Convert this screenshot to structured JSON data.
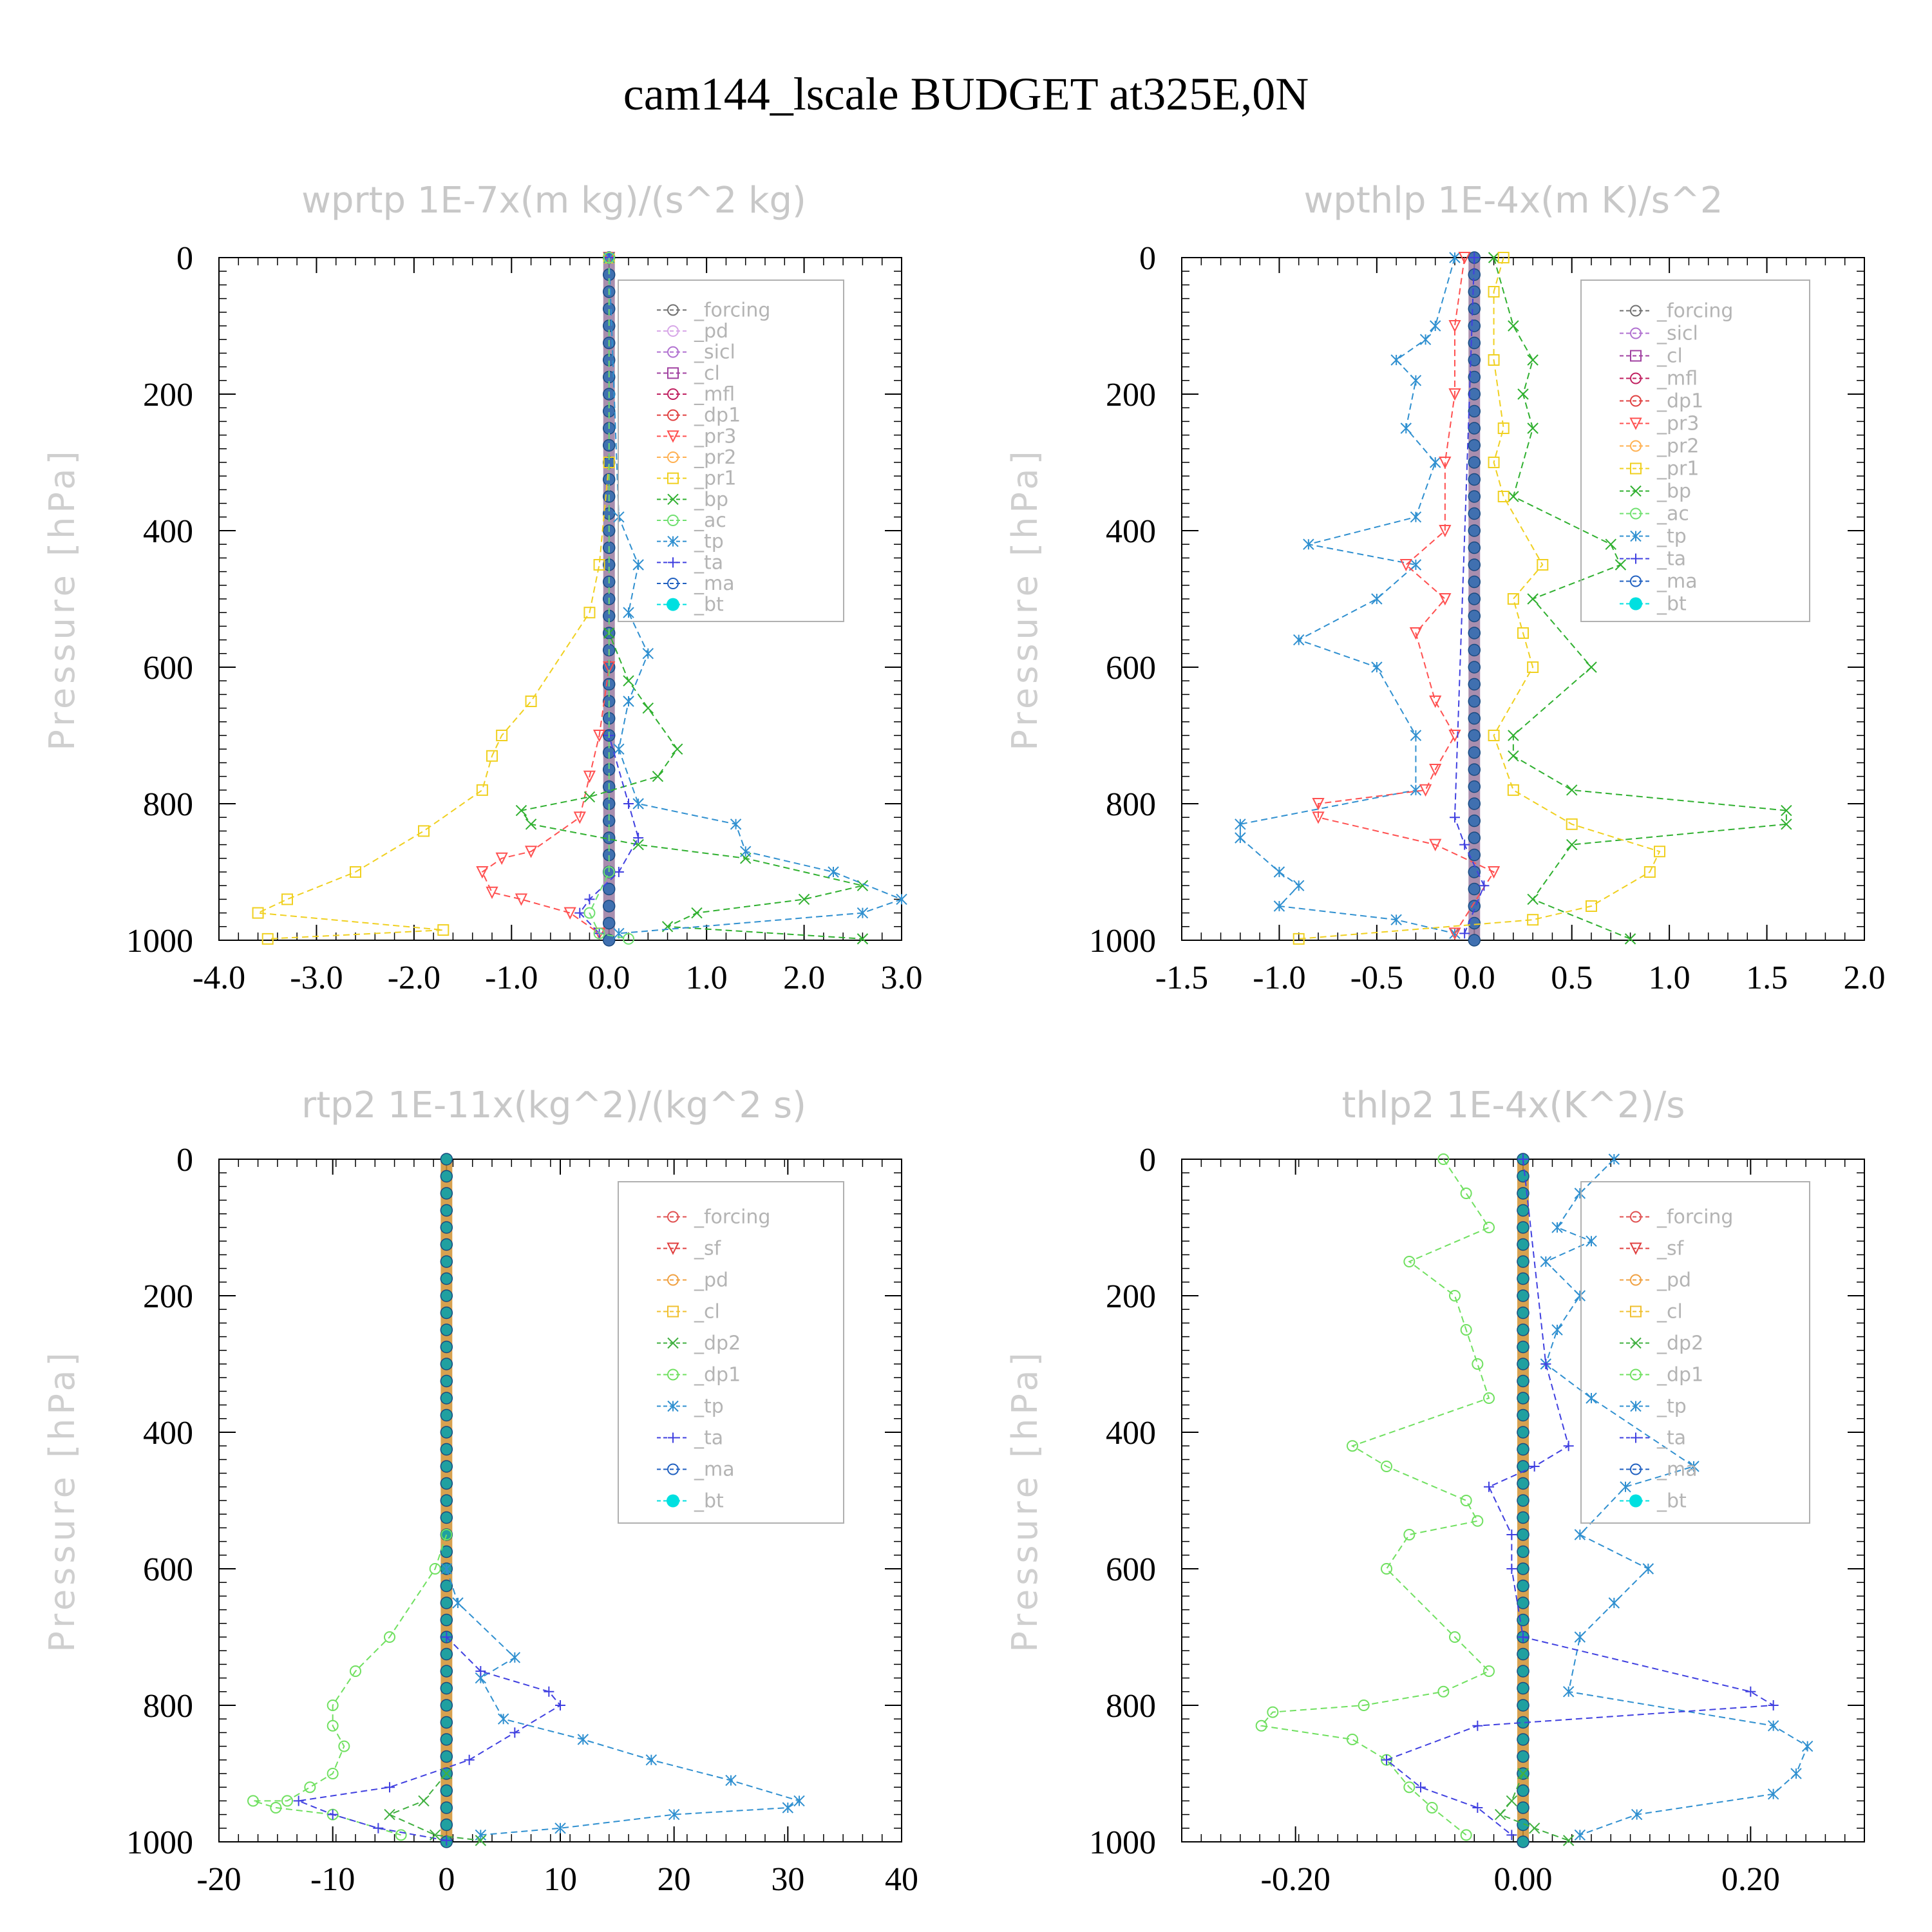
{
  "title": "cam144_lscale  BUDGET at325E,0N",
  "ylabel": "Pressure [hPa]",
  "colors": {
    "_forcing": "#707070",
    "_forcing_red": "#e05050",
    "_pd": "#d8a8e8",
    "_sicl": "#b070d0",
    "_cl": "#a040a0",
    "_cl_yellow": "#f0c030",
    "_mfl": "#c02060",
    "_dp1": "#e04040",
    "_dp1_green": "#70e060",
    "_pr3": "#ff5050",
    "_pr2": "#ffb050",
    "_pr1": "#f0d020",
    "_bp": "#30b030",
    "_ac": "#70e070",
    "_tp": "#3090d0",
    "_ta": "#4040e0",
    "_ma": "#2060c0",
    "_bt": "#00e0e0",
    "_sf": "#e04040",
    "_pd_orange": "#f0a040",
    "_dp2": "#40b040"
  },
  "chart_data": [
    {
      "type": "line",
      "title": "wprtp  1E-7x(m kg)/(s^2 kg)",
      "ylabel": "Pressure [hPa]",
      "xlim": [
        -4.0,
        3.0
      ],
      "ylim": [
        0,
        1000
      ],
      "xticks": [
        "-4.0",
        "-3.0",
        "-2.0",
        "-1.0",
        "0.0",
        "1.0",
        "2.0",
        "3.0"
      ],
      "yticks": [
        "0",
        "200",
        "400",
        "600",
        "800",
        "1000"
      ],
      "legend": [
        "_forcing",
        "_pd",
        "_sicl",
        "_cl",
        "_mfl",
        "_dp1",
        "_pr3",
        "_pr2",
        "_pr1",
        "_bp",
        "_ac",
        "_tp",
        "_ta",
        "_ma",
        "_bt"
      ],
      "legend_position": "upper-right",
      "series": [
        {
          "name": "_pr1",
          "x": [
            0,
            0,
            -0.1,
            -0.2,
            -0.8,
            -1.1,
            -1.2,
            -1.3,
            -1.9,
            -2.6,
            -3.3,
            -3.6,
            -1.7,
            -3.5
          ],
          "y": [
            0,
            300,
            450,
            520,
            650,
            700,
            730,
            780,
            840,
            900,
            940,
            960,
            985,
            998
          ]
        },
        {
          "name": "_pr3",
          "x": [
            0,
            0,
            -0.1,
            -0.2,
            -0.3,
            -0.8,
            -1.1,
            -1.3,
            -1.2,
            -0.9,
            -0.4,
            -0.1
          ],
          "y": [
            0,
            600,
            700,
            760,
            820,
            870,
            880,
            900,
            930,
            940,
            960,
            990
          ]
        },
        {
          "name": "_bp",
          "x": [
            0,
            0,
            0.2,
            0.4,
            0.7,
            0.5,
            -0.2,
            -0.9,
            -0.8,
            0.3,
            1.4,
            2.6,
            2.0,
            0.9,
            0.6,
            2.6
          ],
          "y": [
            0,
            550,
            620,
            660,
            720,
            760,
            790,
            810,
            830,
            860,
            880,
            920,
            940,
            960,
            980,
            998
          ]
        },
        {
          "name": "_tp",
          "x": [
            0,
            0.1,
            0.3,
            0.2,
            0.4,
            0.2,
            0.1,
            0.3,
            1.3,
            1.4,
            2.3,
            3.0,
            2.6,
            0.1
          ],
          "y": [
            0,
            380,
            450,
            520,
            580,
            650,
            720,
            800,
            830,
            870,
            900,
            940,
            960,
            990
          ]
        },
        {
          "name": "_ta",
          "x": [
            0,
            0,
            0.2,
            0.3,
            0.1,
            -0.2,
            -0.3,
            -0.1
          ],
          "y": [
            0,
            700,
            800,
            850,
            900,
            940,
            960,
            990
          ]
        },
        {
          "name": "_ac",
          "x": [
            0,
            0,
            -0.2,
            -0.1,
            0.2
          ],
          "y": [
            0,
            900,
            960,
            990,
            998
          ]
        }
      ]
    },
    {
      "type": "line",
      "title": "wpthlp  1E-4x(m K)/s^2",
      "ylabel": "Pressure [hPa]",
      "xlim": [
        -1.5,
        2.0
      ],
      "ylim": [
        0,
        1000
      ],
      "xticks": [
        "-1.5",
        "-1.0",
        "-0.5",
        "0.0",
        "0.5",
        "1.0",
        "1.5",
        "2.0"
      ],
      "yticks": [
        "0",
        "200",
        "400",
        "600",
        "800",
        "1000"
      ],
      "legend": [
        "_forcing",
        "_sicl",
        "_cl",
        "_mfl",
        "_dp1",
        "_pr3",
        "_pr2",
        "_pr1",
        "_bp",
        "_ac",
        "_tp",
        "_ta",
        "_ma",
        "_bt"
      ],
      "legend_position": "upper-right",
      "series": [
        {
          "name": "_tp",
          "x": [
            -0.1,
            -0.2,
            -0.25,
            -0.4,
            -0.3,
            -0.35,
            -0.2,
            -0.3,
            -0.85,
            -0.3,
            -0.5,
            -0.9,
            -0.5,
            -0.3,
            -0.3,
            -1.2,
            -1.2,
            -1.0,
            -0.9,
            -1.0,
            -0.4,
            -0.1
          ],
          "y": [
            0,
            100,
            120,
            150,
            180,
            250,
            300,
            380,
            420,
            450,
            500,
            560,
            600,
            700,
            780,
            830,
            850,
            900,
            920,
            950,
            970,
            990
          ]
        },
        {
          "name": "_bp",
          "x": [
            0.1,
            0.2,
            0.3,
            0.25,
            0.3,
            0.2,
            0.7,
            0.75,
            0.3,
            0.6,
            0.2,
            0.2,
            0.5,
            1.6,
            1.6,
            0.5,
            0.3,
            0.8
          ],
          "y": [
            0,
            100,
            150,
            200,
            250,
            350,
            420,
            450,
            500,
            600,
            700,
            730,
            780,
            810,
            830,
            860,
            940,
            998
          ]
        },
        {
          "name": "_pr3",
          "x": [
            -0.05,
            -0.1,
            -0.1,
            -0.15,
            -0.15,
            -0.35,
            -0.15,
            -0.3,
            -0.2,
            -0.1,
            -0.2,
            -0.25,
            -0.8,
            -0.8,
            -0.2,
            0.1,
            -0.1
          ],
          "y": [
            0,
            100,
            200,
            300,
            400,
            450,
            500,
            550,
            650,
            700,
            750,
            780,
            800,
            820,
            860,
            900,
            990
          ]
        },
        {
          "name": "_pr1",
          "x": [
            0.15,
            0.1,
            0.1,
            0.15,
            0.1,
            0.15,
            0.35,
            0.2,
            0.25,
            0.3,
            0.1,
            0.2,
            0.5,
            0.95,
            0.9,
            0.6,
            0.3,
            -0.9
          ],
          "y": [
            0,
            50,
            150,
            250,
            300,
            350,
            450,
            500,
            550,
            600,
            700,
            780,
            830,
            870,
            900,
            950,
            970,
            998
          ]
        },
        {
          "name": "_ta",
          "x": [
            0,
            -0.1,
            -0.05,
            0.05,
            -0.05
          ],
          "y": [
            0,
            820,
            860,
            920,
            990
          ]
        }
      ]
    },
    {
      "type": "line",
      "title": "rtp2  1E-11x(kg^2)/(kg^2 s)",
      "ylabel": "Pressure [hPa]",
      "xlim": [
        -20,
        40
      ],
      "ylim": [
        0,
        1000
      ],
      "xticks": [
        "-20",
        "-10",
        "0",
        "10",
        "20",
        "30",
        "40"
      ],
      "yticks": [
        "0",
        "200",
        "400",
        "600",
        "800",
        "1000"
      ],
      "legend": [
        "_forcing",
        "_sf",
        "_pd",
        "_cl",
        "_dp2",
        "_dp1",
        "_tp",
        "_ta",
        "_ma",
        "_bt"
      ],
      "legend_position": "upper-right",
      "series": [
        {
          "name": "_dp1",
          "x": [
            0,
            -1,
            -5,
            -8,
            -10,
            -10,
            -9,
            -10,
            -12,
            -14,
            -17,
            -15,
            -10,
            -4
          ],
          "y": [
            550,
            600,
            700,
            750,
            800,
            830,
            860,
            900,
            920,
            940,
            940,
            950,
            960,
            990
          ]
        },
        {
          "name": "_tp",
          "x": [
            0,
            1,
            6,
            3,
            5,
            12,
            18,
            25,
            31,
            30,
            20,
            10,
            3
          ],
          "y": [
            600,
            650,
            730,
            760,
            820,
            850,
            880,
            910,
            940,
            950,
            960,
            980,
            990
          ]
        },
        {
          "name": "_ta",
          "x": [
            0,
            3,
            9,
            10,
            6,
            2,
            -5,
            -13,
            -10,
            -6,
            0
          ],
          "y": [
            700,
            750,
            780,
            800,
            840,
            880,
            920,
            940,
            960,
            980,
            998
          ]
        },
        {
          "name": "_dp2",
          "x": [
            0,
            -2,
            -5,
            -1,
            3
          ],
          "y": [
            900,
            940,
            960,
            990,
            998
          ]
        }
      ]
    },
    {
      "type": "line",
      "title": "thlp2  1E-4x(K^2)/s",
      "ylabel": "Pressure [hPa]",
      "xlim": [
        -0.3,
        0.3
      ],
      "ylim": [
        0,
        1000
      ],
      "xticks": [
        "-0.20",
        "0.00",
        "0.20"
      ],
      "yticks": [
        "0",
        "200",
        "400",
        "600",
        "800",
        "1000"
      ],
      "legend": [
        "_forcing",
        "_sf",
        "_pd",
        "_cl",
        "_dp2",
        "_dp1",
        "_tp",
        "_ta",
        "_ma",
        "_bt"
      ],
      "legend_position": "upper-right",
      "series": [
        {
          "name": "_dp1",
          "x": [
            -0.07,
            -0.05,
            -0.03,
            -0.1,
            -0.06,
            -0.05,
            -0.04,
            -0.03,
            -0.15,
            -0.12,
            -0.05,
            -0.04,
            -0.1,
            -0.12,
            -0.06,
            -0.03,
            -0.07,
            -0.14,
            -0.22,
            -0.23,
            -0.15,
            -0.12,
            -0.1,
            -0.08,
            -0.05
          ],
          "y": [
            0,
            50,
            100,
            150,
            200,
            250,
            300,
            350,
            420,
            450,
            500,
            530,
            550,
            600,
            700,
            750,
            780,
            800,
            810,
            830,
            850,
            880,
            920,
            950,
            990
          ]
        },
        {
          "name": "_tp",
          "x": [
            0.08,
            0.05,
            0.03,
            0.06,
            0.02,
            0.05,
            0.03,
            0.02,
            0.06,
            0.15,
            0.09,
            0.05,
            0.11,
            0.08,
            0.05,
            0.04,
            0.22,
            0.25,
            0.24,
            0.22,
            0.1,
            0.05
          ],
          "y": [
            0,
            50,
            100,
            120,
            150,
            200,
            250,
            300,
            350,
            450,
            480,
            550,
            600,
            650,
            700,
            780,
            830,
            860,
            900,
            930,
            960,
            990
          ]
        },
        {
          "name": "_ta",
          "x": [
            0.0,
            0.02,
            0.04,
            0.01,
            -0.03,
            -0.01,
            -0.01,
            0.0,
            0.2,
            0.22,
            -0.04,
            -0.12,
            -0.09,
            -0.04,
            -0.01
          ],
          "y": [
            0,
            300,
            420,
            450,
            480,
            550,
            600,
            700,
            780,
            800,
            830,
            880,
            920,
            950,
            990
          ]
        },
        {
          "name": "_dp2",
          "x": [
            0.0,
            -0.01,
            -0.02,
            0.01,
            0.04
          ],
          "y": [
            900,
            940,
            960,
            980,
            998
          ]
        }
      ]
    }
  ]
}
